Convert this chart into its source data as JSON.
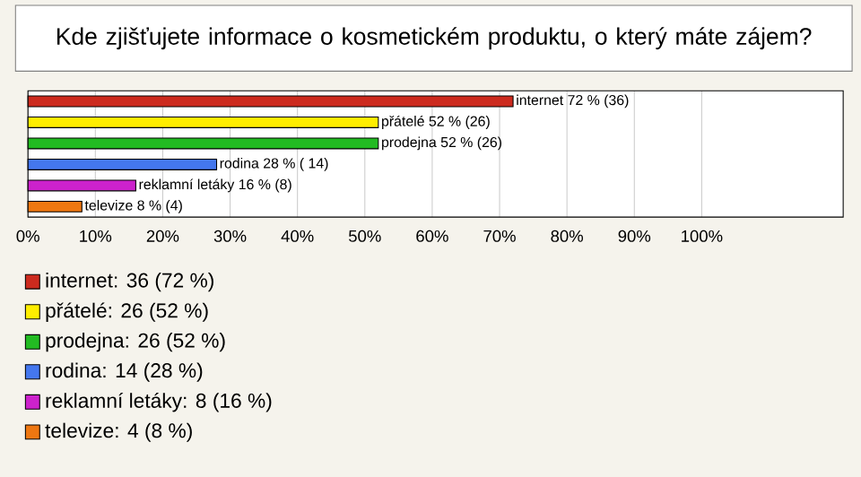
{
  "chart_data": {
    "type": "bar",
    "orientation": "horizontal",
    "title": "Kde zjišťujete informace o kosmetickém produktu, o který máte zájem?",
    "categories": [
      null,
      null,
      null,
      null,
      null,
      null
    ],
    "series": [
      {
        "name": "internet: 36 (72 %)",
        "color": "#cc2a1e",
        "values": [
          72,
          null,
          null,
          null,
          null,
          null
        ],
        "value_labels": [
          "internet 72 % (36)",
          null,
          null,
          null,
          null,
          null
        ]
      },
      {
        "name": "přátelé: 26 (52 %)",
        "color": "#ffee00",
        "values": [
          null,
          52,
          null,
          null,
          null,
          null
        ],
        "value_labels": [
          null,
          "přátelé 52 % (26)",
          null,
          null,
          null,
          null
        ]
      },
      {
        "name": "prodejna: 26 (52 %)",
        "color": "#22bb22",
        "values": [
          null,
          null,
          52,
          null,
          null,
          null
        ],
        "value_labels": [
          null,
          null,
          "prodejna 52 % (26)",
          null,
          null,
          null
        ]
      },
      {
        "name": "rodina: 14 (28 %)",
        "color": "#4477ee",
        "values": [
          null,
          null,
          null,
          28,
          null,
          null
        ],
        "value_labels": [
          null,
          null,
          null,
          "rodina 28 % ( 14)",
          null,
          null
        ]
      },
      {
        "name": "reklamní letáky: 8 (16 %)",
        "color": "#cc22cc",
        "values": [
          null,
          null,
          null,
          null,
          16,
          null
        ],
        "value_labels": [
          null,
          null,
          null,
          null,
          "reklamní letáky 16 % (8)",
          null
        ]
      },
      {
        "name": "televize: 4 (8 %)",
        "color": "#ee7711",
        "values": [
          null,
          null,
          null,
          null,
          null,
          8
        ],
        "value_labels": [
          null,
          null,
          null,
          null,
          null,
          "televize 8 % (4)"
        ]
      }
    ],
    "xlim": [
      0,
      121
    ],
    "xticks": [
      {
        "value": 0,
        "label": "0%"
      },
      {
        "value": 10,
        "label": "10%"
      },
      {
        "value": 20,
        "label": "20%"
      },
      {
        "value": 30,
        "label": "30%"
      },
      {
        "value": 40,
        "label": "40%"
      },
      {
        "value": 50,
        "label": "50%"
      },
      {
        "value": 60,
        "label": "60%"
      },
      {
        "value": 70,
        "label": "70%"
      },
      {
        "value": 80,
        "label": "80%"
      },
      {
        "value": 90,
        "label": "90%"
      },
      {
        "value": 100,
        "label": "100%"
      }
    ],
    "grid": "x",
    "legend": "bottom left"
  }
}
